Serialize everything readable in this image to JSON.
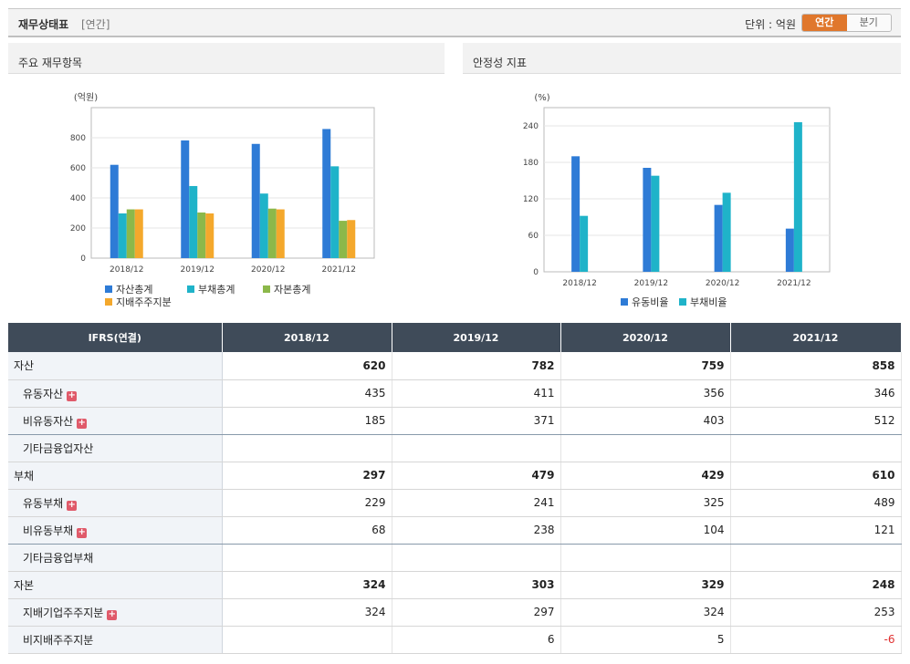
{
  "header": {
    "title": "재무상태표",
    "period": "[연간]",
    "unit_label": "단위 : 억원",
    "toggle_annual": "연간",
    "toggle_quarter": "분기"
  },
  "panel1": {
    "title": "주요 재무항목"
  },
  "panel2": {
    "title": "안정성 지표"
  },
  "chart_data": [
    {
      "type": "bar",
      "title": "주요 재무항목",
      "ylabel": "(억원)",
      "categories": [
        "2018/12",
        "2019/12",
        "2020/12",
        "2021/12"
      ],
      "ylim": [
        0,
        1000
      ],
      "yticks": [
        0,
        200,
        400,
        600,
        800
      ],
      "grid": true,
      "legend_position": "bottom",
      "series": [
        {
          "name": "자산총계",
          "color": "#2e7bd6",
          "values": [
            620,
            782,
            759,
            858
          ]
        },
        {
          "name": "부채총계",
          "color": "#1fb3c9",
          "values": [
            297,
            479,
            429,
            610
          ]
        },
        {
          "name": "자본총계",
          "color": "#8cb84a",
          "values": [
            324,
            303,
            329,
            248
          ]
        },
        {
          "name": "지배주주지분",
          "color": "#f4a82c",
          "values": [
            324,
            297,
            324,
            253
          ]
        }
      ]
    },
    {
      "type": "bar",
      "title": "안정성 지표",
      "ylabel": "(%)",
      "categories": [
        "2018/12",
        "2019/12",
        "2020/12",
        "2021/12"
      ],
      "ylim": [
        0,
        270
      ],
      "yticks": [
        0,
        60,
        120,
        180,
        240
      ],
      "grid": true,
      "legend_position": "bottom",
      "series": [
        {
          "name": "유동비율",
          "color": "#2e7bd6",
          "values": [
            190,
            171,
            110,
            71
          ]
        },
        {
          "name": "부채비율",
          "color": "#1fb3c9",
          "values": [
            92,
            158,
            130,
            246
          ]
        }
      ]
    }
  ],
  "table": {
    "header": [
      "IFRS(연결)",
      "2018/12",
      "2019/12",
      "2020/12",
      "2021/12"
    ],
    "rows": [
      {
        "label": "자산",
        "values": [
          "620",
          "782",
          "759",
          "858"
        ]
      },
      {
        "label": "유동자산",
        "values": [
          "435",
          "411",
          "356",
          "346"
        ]
      },
      {
        "label": "비유동자산",
        "values": [
          "185",
          "371",
          "403",
          "512"
        ]
      },
      {
        "label": "기타금융업자산",
        "values": [
          "",
          "",
          "",
          ""
        ]
      },
      {
        "label": "부채",
        "values": [
          "297",
          "479",
          "429",
          "610"
        ]
      },
      {
        "label": "유동부채",
        "values": [
          "229",
          "241",
          "325",
          "489"
        ]
      },
      {
        "label": "비유동부채",
        "values": [
          "68",
          "238",
          "104",
          "121"
        ]
      },
      {
        "label": "기타금융업부채",
        "values": [
          "",
          "",
          "",
          ""
        ]
      },
      {
        "label": "자본",
        "values": [
          "324",
          "303",
          "329",
          "248"
        ]
      },
      {
        "label": "지배기업주주지분",
        "values": [
          "324",
          "297",
          "324",
          "253"
        ]
      },
      {
        "label": "비지배주주지분",
        "values": [
          "",
          "6",
          "5",
          "-6"
        ]
      }
    ]
  }
}
